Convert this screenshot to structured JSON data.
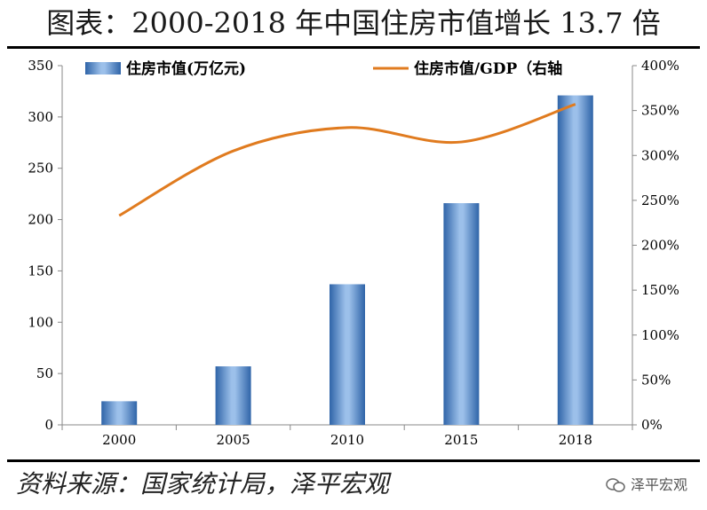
{
  "title": "图表：2000-2018 年中国住房市值增长 13.7 倍",
  "source": "资料来源：国家统计局，泽平宏观",
  "brand": "泽平宏观",
  "chart_data": {
    "type": "bar",
    "categories": [
      "2000",
      "2005",
      "2010",
      "2015",
      "2018"
    ],
    "series": [
      {
        "name": "住房市值(万亿元)",
        "type": "bar",
        "axis": "left",
        "values": [
          23,
          57,
          137,
          216,
          321
        ],
        "color": "#4a7ebb"
      },
      {
        "name": "住房市值/GDP（右轴",
        "type": "line",
        "axis": "right",
        "values": [
          233,
          305,
          331,
          315,
          357
        ],
        "color": "#e07b1f"
      }
    ],
    "ylim_left": [
      0,
      350
    ],
    "yticks_left": [
      "0",
      "50",
      "100",
      "150",
      "200",
      "250",
      "300",
      "350"
    ],
    "ylim_right": [
      0,
      400
    ],
    "yticks_right": [
      "0%",
      "50%",
      "100%",
      "150%",
      "200%",
      "250%",
      "300%",
      "350%",
      "400%"
    ],
    "legend": "top",
    "grid": false
  }
}
